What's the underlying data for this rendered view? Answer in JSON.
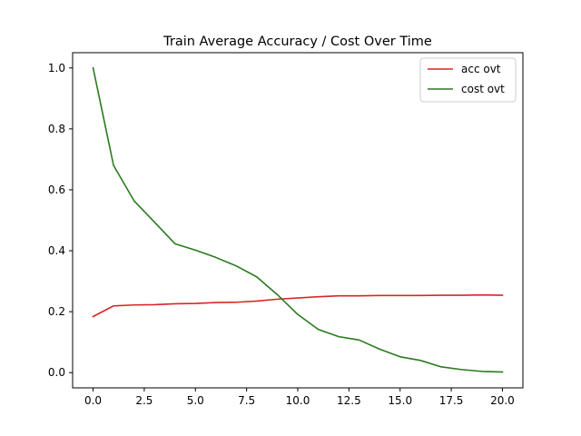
{
  "chart_data": {
    "type": "line",
    "title": "Train Average Accuracy / Cost Over Time",
    "xlabel": "",
    "ylabel": "",
    "xlim": [
      -1,
      21
    ],
    "ylim": [
      -0.05,
      1.05
    ],
    "xticks": [
      0.0,
      2.5,
      5.0,
      7.5,
      10.0,
      12.5,
      15.0,
      17.5,
      20.0
    ],
    "xtick_labels": [
      "0.0",
      "2.5",
      "5.0",
      "7.5",
      "10.0",
      "12.5",
      "15.0",
      "17.5",
      "20.0"
    ],
    "yticks": [
      0.0,
      0.2,
      0.4,
      0.6,
      0.8,
      1.0
    ],
    "ytick_labels": [
      "0.0",
      "0.2",
      "0.4",
      "0.6",
      "0.8",
      "1.0"
    ],
    "grid": false,
    "legend_position": "top-right",
    "x": [
      0,
      1,
      2,
      3,
      4,
      5,
      6,
      7,
      8,
      9,
      10,
      11,
      12,
      13,
      14,
      15,
      16,
      17,
      18,
      19,
      20
    ],
    "series": [
      {
        "name": "acc ovt",
        "color": "#d62728",
        "values": [
          0.184,
          0.219,
          0.222,
          0.223,
          0.226,
          0.227,
          0.23,
          0.231,
          0.235,
          0.241,
          0.245,
          0.249,
          0.252,
          0.252,
          0.253,
          0.253,
          0.253,
          0.254,
          0.254,
          0.255,
          0.254
        ]
      },
      {
        "name": "cost ovt",
        "color": "#2a7a1e",
        "values": [
          1.0,
          0.68,
          0.564,
          0.494,
          0.423,
          0.402,
          0.378,
          0.35,
          0.314,
          0.256,
          0.191,
          0.142,
          0.118,
          0.107,
          0.077,
          0.052,
          0.04,
          0.019,
          0.01,
          0.004,
          0.002
        ]
      }
    ]
  }
}
